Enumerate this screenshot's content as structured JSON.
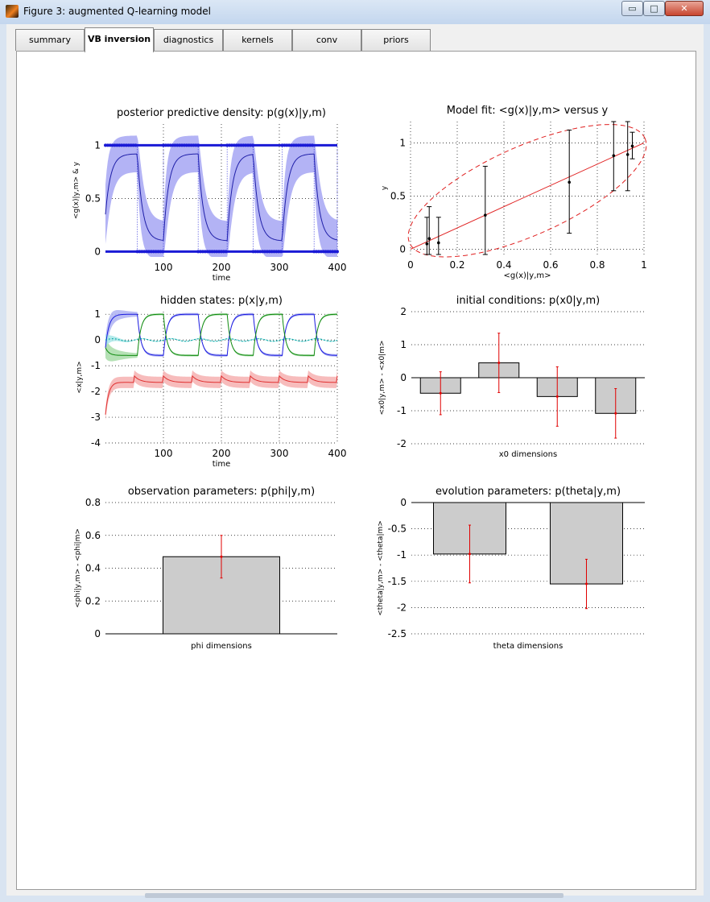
{
  "window": {
    "title": "Figure 3: augmented Q-learning model",
    "controls": {
      "minimize": "▭",
      "maximize": "□",
      "close": "✕"
    }
  },
  "tabs": [
    {
      "label": "summary",
      "active": false
    },
    {
      "label": "VB inversion",
      "active": true
    },
    {
      "label": "diagnostics",
      "active": false
    },
    {
      "label": "kernels",
      "active": false
    },
    {
      "label": "conv",
      "active": false
    },
    {
      "label": "priors",
      "active": false
    }
  ],
  "chart_data": [
    {
      "id": "posterior-predictive",
      "type": "line",
      "title": "posterior predictive density: p(g(x)|y,m)",
      "xlabel": "time",
      "ylabel": "<g(x)|y,m> & y",
      "xlim": [
        0,
        400
      ],
      "ylim": [
        -0.05,
        1.2
      ],
      "xticks": [
        100,
        200,
        300,
        400
      ],
      "yticks": [
        0,
        0.5,
        1
      ],
      "grid": true,
      "blocks": [
        {
          "start": 0,
          "end": 55,
          "y": 1
        },
        {
          "start": 55,
          "end": 100,
          "y": 0
        },
        {
          "start": 100,
          "end": 160,
          "y": 1
        },
        {
          "start": 160,
          "end": 210,
          "y": 0
        },
        {
          "start": 210,
          "end": 255,
          "y": 1
        },
        {
          "start": 255,
          "end": 305,
          "y": 0
        },
        {
          "start": 305,
          "end": 360,
          "y": 1
        },
        {
          "start": 360,
          "end": 400,
          "y": 0
        }
      ],
      "series": [
        {
          "color": "#1f1fa8",
          "band_color": "#b3b3f5",
          "point_color": "#1a1ad6"
        }
      ]
    },
    {
      "id": "model-fit",
      "type": "scatter",
      "title": "Model fit: <g(x)|y,m> versus y",
      "xlabel": "<g(x)|y,m>",
      "ylabel": "y",
      "xlim": [
        0,
        1
      ],
      "ylim": [
        -0.05,
        1.2
      ],
      "xticks": [
        0,
        0.2,
        0.4,
        0.6,
        0.8,
        1
      ],
      "yticks": [
        0,
        0.5,
        1
      ],
      "grid": true,
      "points": [
        {
          "x": 0.07,
          "y": 0.05,
          "lo": -0.2,
          "hi": 0.3
        },
        {
          "x": 0.08,
          "y": 0.1,
          "lo": -0.2,
          "hi": 0.4
        },
        {
          "x": 0.12,
          "y": 0.06,
          "lo": -0.2,
          "hi": 0.3
        },
        {
          "x": 0.32,
          "y": 0.32,
          "lo": -0.15,
          "hi": 0.78
        },
        {
          "x": 0.68,
          "y": 0.63,
          "lo": 0.15,
          "hi": 1.12
        },
        {
          "x": 0.87,
          "y": 0.88,
          "lo": 0.55,
          "hi": 1.22
        },
        {
          "x": 0.93,
          "y": 0.89,
          "lo": 0.55,
          "hi": 1.21
        },
        {
          "x": 0.95,
          "y": 0.97,
          "lo": 0.85,
          "hi": 1.1
        }
      ],
      "fit_line_color": "#e02020"
    },
    {
      "id": "hidden-states",
      "type": "line",
      "title": "hidden states: p(x|y,m)",
      "xlabel": "time",
      "ylabel": "<x|y,m>",
      "xlim": [
        0,
        400
      ],
      "ylim": [
        -4,
        1.1
      ],
      "xticks": [
        100,
        200,
        300,
        400
      ],
      "yticks": [
        1,
        0,
        -1,
        -2,
        -3,
        -4
      ],
      "grid": true,
      "series": [
        {
          "color": "#1a1ae0",
          "band": "#aeb2f2"
        },
        {
          "color": "#0f8a0f",
          "band": "#a8dca8"
        },
        {
          "color": "#00a3a3",
          "band": "#a8e8e8"
        },
        {
          "color": "#e03030",
          "band": "#f6b0b0"
        }
      ]
    },
    {
      "id": "initial-conditions",
      "type": "bar",
      "title": "initial conditions: p(x0|y,m)",
      "xlabel": "x0 dimensions",
      "ylabel": "<x0|y,m> - <x0|m>",
      "ylim": [
        -2,
        2
      ],
      "yticks": [
        2,
        1,
        0,
        -1,
        -2
      ],
      "grid": true,
      "values": [
        -0.47,
        0.45,
        -0.57,
        -1.08
      ],
      "errors": [
        0.65,
        0.9,
        0.9,
        0.75
      ]
    },
    {
      "id": "observation-parameters",
      "type": "bar",
      "title": "observation parameters: p(phi|y,m)",
      "xlabel": "phi dimensions",
      "ylabel": "<phi|y,m> - <phi|m>",
      "ylim": [
        0,
        0.8
      ],
      "yticks": [
        0.8,
        0.6,
        0.4,
        0.2,
        0
      ],
      "grid": true,
      "values": [
        0.47
      ],
      "errors": [
        0.13
      ]
    },
    {
      "id": "evolution-parameters",
      "type": "bar",
      "title": "evolution parameters: p(theta|y,m)",
      "xlabel": "theta dimensions",
      "ylabel": "<theta|y,m> - <theta|m>",
      "ylim": [
        -2.5,
        0
      ],
      "yticks": [
        0,
        -0.5,
        -1,
        -1.5,
        -2,
        -2.5
      ],
      "grid": true,
      "values": [
        -0.98,
        -1.55
      ],
      "errors": [
        0.55,
        0.47
      ]
    }
  ]
}
